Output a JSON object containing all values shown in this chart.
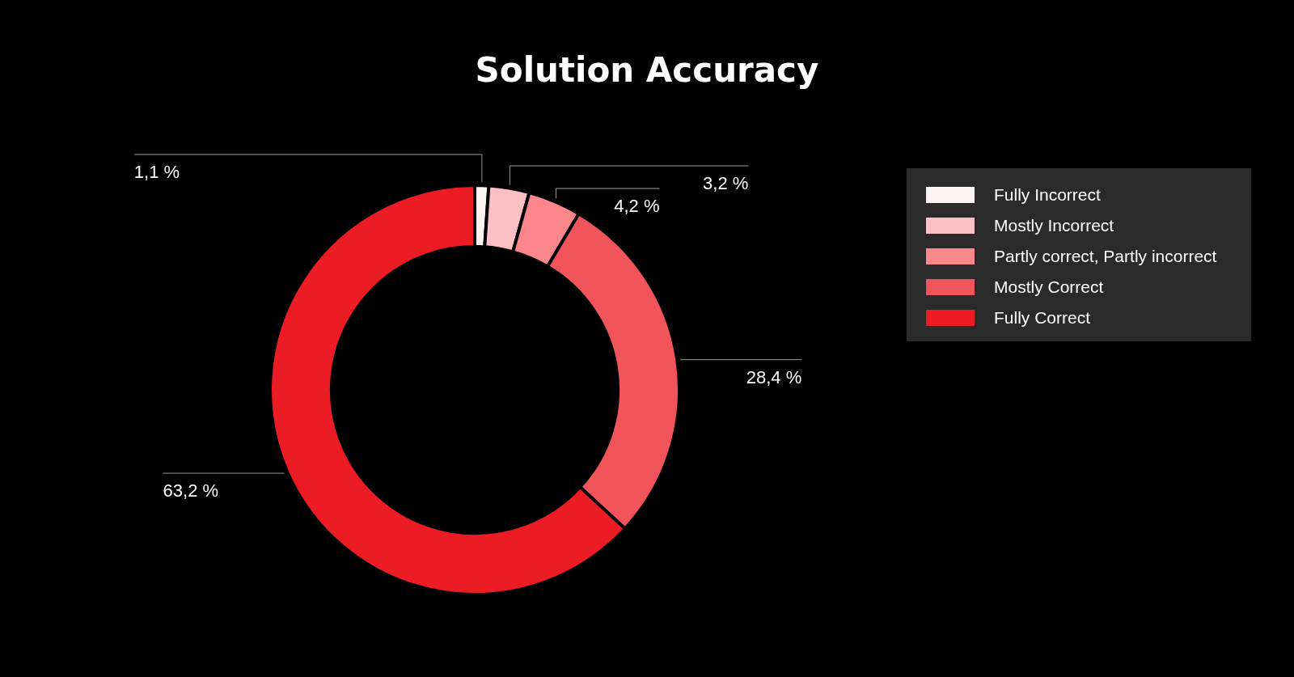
{
  "chart_data": {
    "type": "donut",
    "title": "Solution Accuracy",
    "categories": [
      "Fully Incorrect",
      "Mostly Incorrect",
      "Partly correct, Partly incorrect",
      "Mostly Correct",
      "Fully Correct"
    ],
    "values": [
      1.1,
      3.2,
      4.2,
      28.4,
      63.2
    ],
    "colors": [
      "#faf5f2",
      "#fdc1c5",
      "#fb868b",
      "#f2545b",
      "#ec1c24"
    ],
    "value_labels": [
      "1,1 %",
      "3,2 %",
      "4,2 %",
      "28,4 %",
      "63,2 %"
    ],
    "legend": "right"
  }
}
